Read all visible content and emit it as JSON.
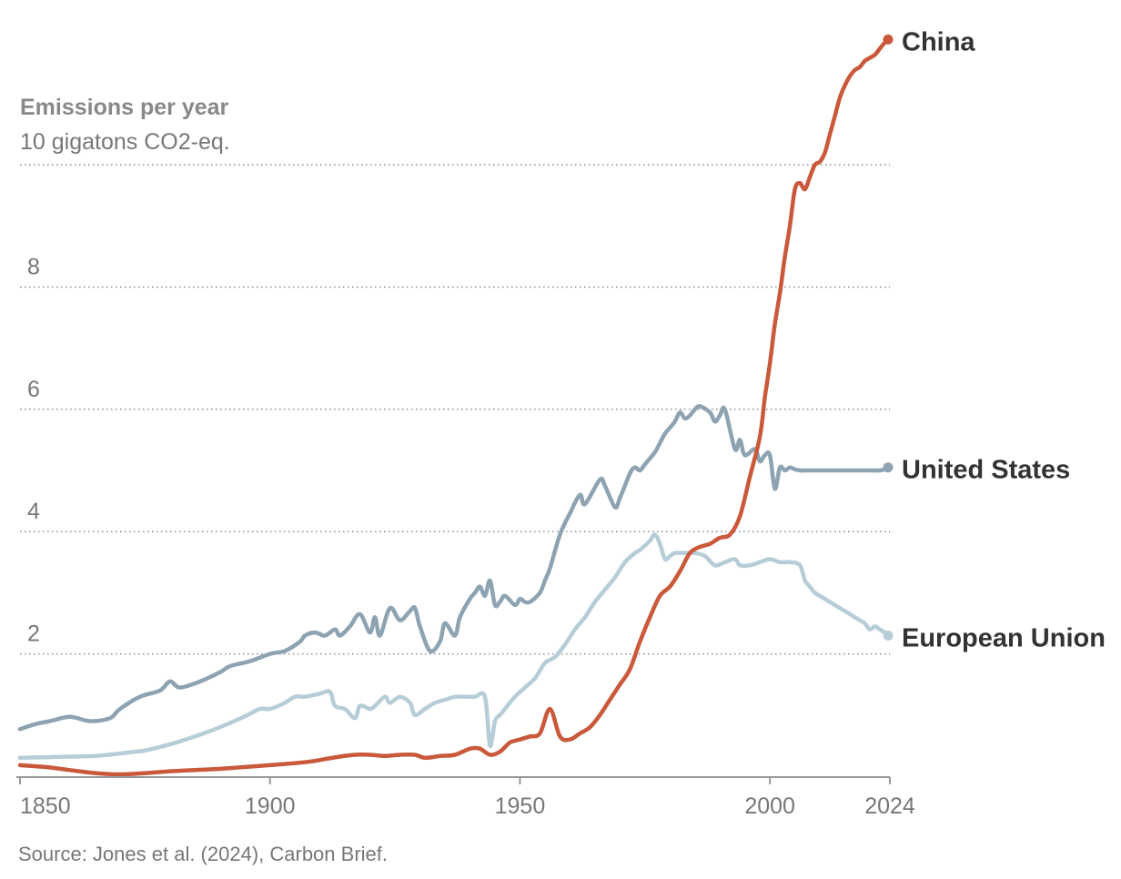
{
  "chart_data": {
    "type": "line",
    "ylabel_title": "Emissions per year",
    "ylabel_unit": "10 gigatons CO2-eq.",
    "yticks": [
      2,
      4,
      6,
      8,
      10
    ],
    "ytick_labels": [
      "2",
      "4",
      "6",
      "8",
      ""
    ],
    "ylim": [
      0,
      12.1
    ],
    "xticks": [
      1850,
      1900,
      1950,
      2000,
      2024
    ],
    "xtick_labels": [
      "1850",
      "1900",
      "1950",
      "2000",
      "2024"
    ],
    "xlim": [
      1850,
      2024
    ],
    "grid": "horizontal dotted",
    "source": "Source: Jones et al. (2024), Carbon Brief.",
    "series": [
      {
        "name": "United States",
        "color": "#8ea3b1",
        "x": [
          1850,
          1853,
          1856,
          1860,
          1864,
          1868,
          1870,
          1874,
          1878,
          1880,
          1882,
          1886,
          1890,
          1892,
          1896,
          1900,
          1903,
          1906,
          1907,
          1909,
          1911,
          1913,
          1914,
          1916,
          1918,
          1920,
          1921,
          1922,
          1924,
          1926,
          1928,
          1929,
          1930,
          1932,
          1934,
          1935,
          1937,
          1938,
          1940,
          1941,
          1942,
          1943,
          1944,
          1945,
          1946,
          1947,
          1949,
          1950,
          1951,
          1952,
          1954,
          1955,
          1956,
          1958,
          1960,
          1962,
          1963,
          1966,
          1967,
          1969,
          1970,
          1972,
          1973,
          1974,
          1975,
          1977,
          1978,
          1979,
          1980,
          1981,
          1982,
          1983,
          1984,
          1985,
          1986,
          1988,
          1989,
          1990,
          1991,
          1993,
          1994,
          1995,
          1997,
          1998,
          1999,
          2000,
          2001,
          2002,
          2003,
          2004,
          2005,
          2006,
          2007,
          2008,
          2009,
          2010,
          2011,
          2012,
          2013,
          2014,
          2015,
          2016,
          2017,
          2018,
          2019,
          2020,
          2021,
          2022,
          2023,
          2024
        ],
        "y": [
          0.77,
          0.85,
          0.9,
          0.97,
          0.9,
          0.95,
          1.1,
          1.3,
          1.4,
          1.55,
          1.45,
          1.55,
          1.7,
          1.8,
          1.88,
          2.0,
          2.05,
          2.2,
          2.3,
          2.35,
          2.3,
          2.4,
          2.3,
          2.45,
          2.65,
          2.35,
          2.6,
          2.3,
          2.75,
          2.55,
          2.7,
          2.75,
          2.45,
          2.05,
          2.2,
          2.5,
          2.3,
          2.6,
          2.9,
          3.0,
          3.1,
          2.95,
          3.2,
          2.8,
          2.85,
          2.95,
          2.8,
          2.9,
          2.85,
          2.85,
          3.0,
          3.2,
          3.4,
          3.95,
          4.3,
          4.6,
          4.45,
          4.85,
          4.75,
          4.4,
          4.55,
          4.95,
          5.05,
          5.0,
          5.1,
          5.3,
          5.45,
          5.6,
          5.7,
          5.8,
          5.95,
          5.85,
          5.9,
          6.0,
          6.05,
          5.95,
          5.8,
          5.9,
          6.0,
          5.35,
          5.5,
          5.25,
          5.35,
          5.15,
          5.25,
          5.25,
          4.7,
          5.05,
          5.0,
          5.05,
          5.02,
          5.0,
          5.0,
          5.0,
          5.0,
          5.0,
          5.0,
          5.0,
          5.0,
          5.0,
          5.0,
          5.0,
          5.0,
          5.0,
          5.0,
          5.0,
          5.0,
          5.0,
          5.02,
          5.05
        ]
      },
      {
        "name": "European Union",
        "color": "#b6cdd8",
        "x": [
          1850,
          1855,
          1860,
          1865,
          1870,
          1873,
          1875,
          1880,
          1885,
          1890,
          1895,
          1898,
          1900,
          1903,
          1905,
          1907,
          1910,
          1912,
          1913,
          1915,
          1917,
          1918,
          1920,
          1921,
          1923,
          1924,
          1926,
          1928,
          1929,
          1931,
          1933,
          1935,
          1937,
          1939,
          1941,
          1943,
          1944,
          1945,
          1946,
          1947,
          1949,
          1951,
          1953,
          1955,
          1957,
          1959,
          1961,
          1963,
          1965,
          1967,
          1969,
          1971,
          1973,
          1974,
          1976,
          1977,
          1978,
          1979,
          1980,
          1981,
          1983,
          1985,
          1987,
          1989,
          1991,
          1993,
          1994,
          1996,
          1998,
          2000,
          2002,
          2004,
          2006,
          2007,
          2008,
          2009,
          2011,
          2013,
          2014,
          2015,
          2016,
          2017,
          2018,
          2019,
          2020,
          2021,
          2022,
          2023,
          2024
        ],
        "y": [
          0.3,
          0.31,
          0.32,
          0.33,
          0.37,
          0.4,
          0.42,
          0.52,
          0.65,
          0.8,
          0.98,
          1.1,
          1.1,
          1.2,
          1.3,
          1.3,
          1.35,
          1.38,
          1.15,
          1.1,
          0.95,
          1.15,
          1.1,
          1.15,
          1.3,
          1.2,
          1.3,
          1.2,
          1.0,
          1.1,
          1.2,
          1.25,
          1.3,
          1.3,
          1.3,
          1.3,
          0.5,
          0.9,
          1.0,
          1.1,
          1.3,
          1.45,
          1.6,
          1.85,
          1.95,
          2.15,
          2.4,
          2.6,
          2.85,
          3.05,
          3.25,
          3.5,
          3.65,
          3.7,
          3.85,
          3.95,
          3.8,
          3.55,
          3.6,
          3.65,
          3.65,
          3.65,
          3.6,
          3.45,
          3.5,
          3.55,
          3.45,
          3.45,
          3.5,
          3.55,
          3.5,
          3.5,
          3.45,
          3.2,
          3.1,
          3.0,
          2.9,
          2.8,
          2.75,
          2.7,
          2.65,
          2.6,
          2.55,
          2.5,
          2.4,
          2.45,
          2.4,
          2.35,
          2.3
        ]
      },
      {
        "name": "China",
        "color": "#c9593a",
        "x": [
          1850,
          1855,
          1860,
          1865,
          1870,
          1875,
          1880,
          1885,
          1890,
          1895,
          1900,
          1903,
          1906,
          1909,
          1911,
          1914,
          1917,
          1920,
          1923,
          1926,
          1929,
          1931,
          1934,
          1937,
          1940,
          1942,
          1944,
          1946,
          1948,
          1950,
          1952,
          1954,
          1956,
          1958,
          1960,
          1962,
          1964,
          1966,
          1968,
          1970,
          1972,
          1974,
          1976,
          1978,
          1980,
          1982,
          1984,
          1986,
          1988,
          1990,
          1992,
          1994,
          1996,
          1998,
          1999,
          2000,
          2001,
          2002,
          2003,
          2004,
          2005,
          2006,
          2007,
          2008,
          2009,
          2010,
          2011,
          2012,
          2013,
          2014,
          2015,
          2016,
          2017,
          2018,
          2019,
          2020,
          2021,
          2022,
          2023,
          2024
        ],
        "y": [
          0.18,
          0.15,
          0.1,
          0.05,
          0.03,
          0.05,
          0.08,
          0.1,
          0.12,
          0.15,
          0.18,
          0.2,
          0.22,
          0.25,
          0.28,
          0.32,
          0.35,
          0.35,
          0.33,
          0.35,
          0.35,
          0.3,
          0.33,
          0.35,
          0.45,
          0.45,
          0.35,
          0.4,
          0.55,
          0.6,
          0.65,
          0.7,
          1.1,
          0.65,
          0.6,
          0.7,
          0.8,
          1.0,
          1.25,
          1.5,
          1.75,
          2.2,
          2.6,
          2.95,
          3.1,
          3.35,
          3.65,
          3.75,
          3.8,
          3.9,
          3.95,
          4.25,
          4.9,
          5.55,
          6.2,
          6.75,
          7.4,
          7.9,
          8.5,
          9.0,
          9.6,
          9.7,
          9.6,
          9.8,
          10.0,
          10.05,
          10.2,
          10.5,
          10.8,
          11.1,
          11.3,
          11.45,
          11.55,
          11.6,
          11.7,
          11.75,
          11.8,
          11.9,
          12.0,
          12.05
        ]
      }
    ]
  }
}
